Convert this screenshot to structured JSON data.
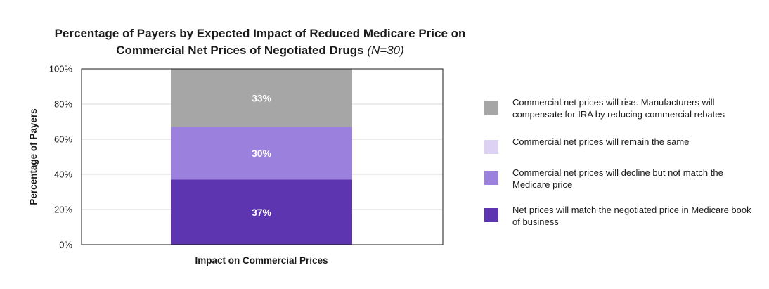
{
  "chart_data": {
    "type": "bar",
    "stacked": true,
    "title": "Percentage of Payers by Expected Impact of Reduced Medicare Price on Commercial Net Prices of Negotiated Drugs",
    "title_note": "(N=30)",
    "xlabel": "Impact on Commercial Prices",
    "ylabel": "Percentage of Payers",
    "ylim": [
      0,
      100
    ],
    "y_ticks": [
      "0%",
      "20%",
      "40%",
      "60%",
      "80%",
      "100%"
    ],
    "y_tick_values": [
      0,
      20,
      40,
      60,
      80,
      100
    ],
    "grid": true,
    "legend_position": "right",
    "categories": [
      "Impact on Commercial Prices"
    ],
    "series": [
      {
        "name": "Net prices will match the negotiated price in Medicare book of business",
        "values": [
          37
        ],
        "label": "37%",
        "color": "#5e35b1"
      },
      {
        "name": "Commercial net prices will decline but not match the Medicare price",
        "values": [
          30
        ],
        "label": "30%",
        "color": "#9c80dd"
      },
      {
        "name": "Commercial net prices will remain the same",
        "values": [
          0
        ],
        "label": "",
        "color": "#ddd2f3"
      },
      {
        "name": "Commercial net prices will rise. Manufacturers will compensate for IRA by reducing commercial rebates",
        "values": [
          33
        ],
        "label": "33%",
        "color": "#a6a6a6"
      }
    ],
    "legend_order": [
      3,
      2,
      1,
      0
    ]
  }
}
